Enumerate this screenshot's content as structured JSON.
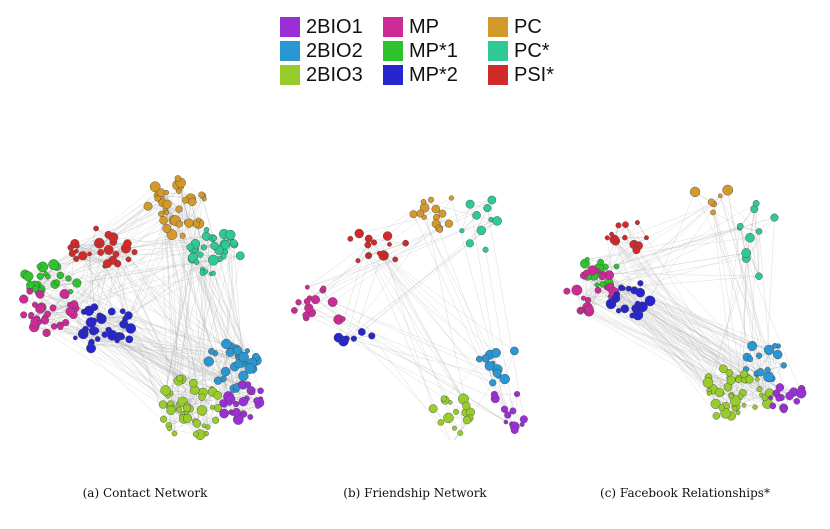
{
  "legend": [
    {
      "label": "2BIO1",
      "color": "#9b2fd6"
    },
    {
      "label": "2BIO2",
      "color": "#2a96d2"
    },
    {
      "label": "2BIO3",
      "color": "#97cc2c"
    },
    {
      "label": "MP",
      "color": "#cc2a95"
    },
    {
      "label": "MP*1",
      "color": "#2ec22e"
    },
    {
      "label": "MP*2",
      "color": "#2626cc"
    },
    {
      "label": "PC",
      "color": "#d3992a"
    },
    {
      "label": "PC*",
      "color": "#2ec994"
    },
    {
      "label": "PSI*",
      "color": "#d02a2a"
    }
  ],
  "captions": {
    "a": "(a) Contact Network",
    "b": "(b) Friendship Network",
    "c": "(c) Facebook Relationships*"
  }
}
